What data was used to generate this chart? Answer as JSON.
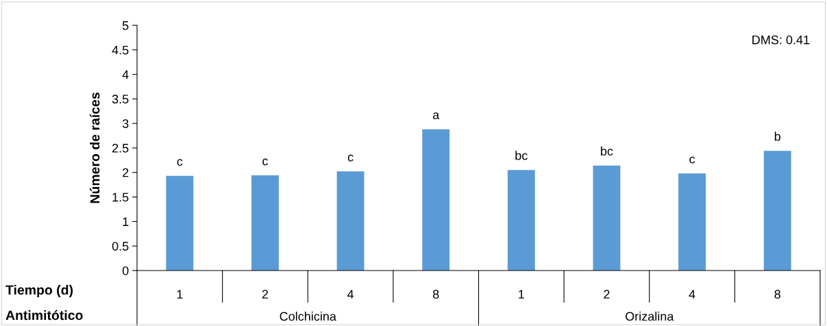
{
  "chart_data": {
    "type": "bar",
    "ylabel": "Número de raíces",
    "categories": [
      "1",
      "2",
      "4",
      "8",
      "1",
      "2",
      "4",
      "8"
    ],
    "values": [
      1.93,
      1.94,
      2.02,
      2.88,
      2.05,
      2.14,
      1.98,
      2.44
    ],
    "value_labels": [
      "c",
      "c",
      "c",
      "a",
      "bc",
      "bc",
      "c",
      "b"
    ],
    "color": "#5b9bd5",
    "ylim": [
      0,
      5
    ],
    "yticks": [
      0,
      0.5,
      1,
      1.5,
      2,
      2.5,
      3,
      3.5,
      4,
      4.5,
      5
    ],
    "grid": false,
    "annotations": [
      "DMS: 0.41",
      "Tiempo (d)",
      "Antimitótico",
      "Colchicina",
      "Orizalina"
    ]
  }
}
